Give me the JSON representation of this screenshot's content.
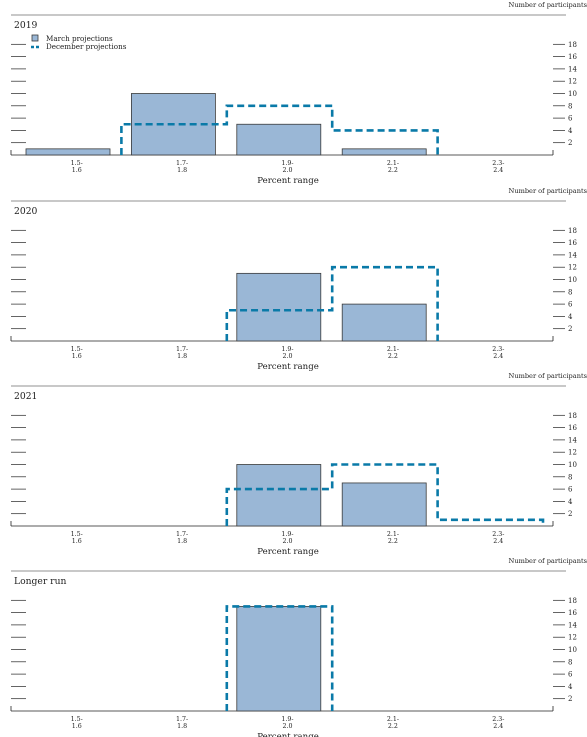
{
  "chart_data": [
    {
      "type": "bar",
      "title": "2019",
      "right_axis_label": "Number of participants",
      "xlabel": "Percent range",
      "categories": [
        [
          "1.5-",
          "1.6"
        ],
        [
          "1.7-",
          "1.8"
        ],
        [
          "1.9-",
          "2.0"
        ],
        [
          "2.1-",
          "2.2"
        ],
        [
          "2.3-",
          "2.4"
        ]
      ],
      "ylim": [
        0,
        18
      ],
      "yticks": [
        2,
        4,
        6,
        8,
        10,
        12,
        14,
        16,
        18
      ],
      "series": [
        {
          "name": "March projections",
          "style": "bar",
          "values": [
            1,
            10,
            5,
            1,
            0
          ]
        },
        {
          "name": "December projections",
          "style": "dashed-outline",
          "values": [
            0,
            5,
            8,
            4,
            0
          ]
        }
      ],
      "legend": {
        "placement": "top-left",
        "items": [
          "March projections",
          "December projections"
        ]
      }
    },
    {
      "type": "bar",
      "title": "2020",
      "right_axis_label": "Number of participants",
      "xlabel": "Percent range",
      "categories": [
        [
          "1.5-",
          "1.6"
        ],
        [
          "1.7-",
          "1.8"
        ],
        [
          "1.9-",
          "2.0"
        ],
        [
          "2.1-",
          "2.2"
        ],
        [
          "2.3-",
          "2.4"
        ]
      ],
      "ylim": [
        0,
        18
      ],
      "yticks": [
        2,
        4,
        6,
        8,
        10,
        12,
        14,
        16,
        18
      ],
      "series": [
        {
          "name": "March projections",
          "style": "bar",
          "values": [
            0,
            0,
            11,
            6,
            0
          ]
        },
        {
          "name": "December projections",
          "style": "dashed-outline",
          "values": [
            0,
            0,
            5,
            12,
            0
          ]
        }
      ]
    },
    {
      "type": "bar",
      "title": "2021",
      "right_axis_label": "Number of participants",
      "xlabel": "Percent range",
      "categories": [
        [
          "1.5-",
          "1.6"
        ],
        [
          "1.7-",
          "1.8"
        ],
        [
          "1.9-",
          "2.0"
        ],
        [
          "2.1-",
          "2.2"
        ],
        [
          "2.3-",
          "2.4"
        ]
      ],
      "ylim": [
        0,
        18
      ],
      "yticks": [
        2,
        4,
        6,
        8,
        10,
        12,
        14,
        16,
        18
      ],
      "series": [
        {
          "name": "March projections",
          "style": "bar",
          "values": [
            0,
            0,
            10,
            7,
            0
          ]
        },
        {
          "name": "December projections",
          "style": "dashed-outline",
          "values": [
            0,
            0,
            6,
            10,
            1
          ]
        }
      ]
    },
    {
      "type": "bar",
      "title": "Longer run",
      "right_axis_label": "Number of participants",
      "xlabel": "Percent range",
      "categories": [
        [
          "1.5-",
          "1.6"
        ],
        [
          "1.7-",
          "1.8"
        ],
        [
          "1.9-",
          "2.0"
        ],
        [
          "2.1-",
          "2.2"
        ],
        [
          "2.3-",
          "2.4"
        ]
      ],
      "ylim": [
        0,
        18
      ],
      "yticks": [
        2,
        4,
        6,
        8,
        10,
        12,
        14,
        16,
        18
      ],
      "series": [
        {
          "name": "March projections",
          "style": "bar",
          "values": [
            0,
            0,
            17,
            0,
            0
          ]
        },
        {
          "name": "December projections",
          "style": "dashed-outline",
          "values": [
            0,
            0,
            17,
            0,
            0
          ]
        }
      ]
    }
  ],
  "colors": {
    "bar_fill": "#9ab7d6",
    "bar_stroke": "#3a3a3a",
    "dashed": "#0a7aa8",
    "axis": "#222222"
  }
}
